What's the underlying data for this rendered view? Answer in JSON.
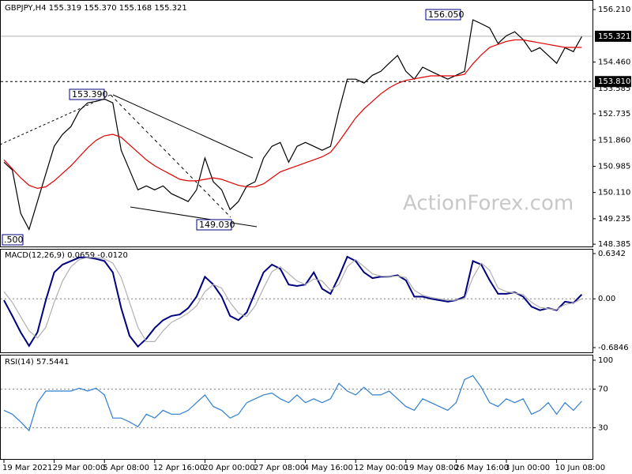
{
  "chart_data": [
    {
      "type": "line",
      "title": "GBPJPY,H4  155.319 155.370 155.168 155.321",
      "watermark": "ActionForex.com",
      "annotations": [
        "153.390",
        "156.050",
        "149.030",
        ".500"
      ],
      "ylim": [
        148.31,
        156.53
      ],
      "yticks": [
        {
          "value": 156.21,
          "label": "156.210"
        },
        {
          "value": 154.46,
          "label": "154.460"
        },
        153.585,
        152.735,
        {
          "value": 151.86,
          "label": "151.860"
        },
        150.985,
        {
          "value": 150.11,
          "label": "150.110"
        },
        149.235,
        148.385
      ],
      "hlines": [
        {
          "value": 155.321,
          "style": "solid"
        },
        {
          "value": 153.81,
          "label": "153.810",
          "style": "dotted"
        }
      ],
      "grid": false,
      "series": [
        {
          "color": "#000000",
          "values": [
            151.12,
            150.86,
            149.41,
            148.88,
            149.81,
            150.73,
            151.65,
            152.05,
            152.31,
            152.84,
            153.1,
            153.15,
            153.23,
            153.1,
            151.52,
            150.86,
            150.2,
            150.33,
            150.2,
            150.33,
            150.07,
            149.94,
            149.81,
            150.2,
            151.26,
            150.47,
            150.2,
            149.54,
            149.81,
            150.33,
            150.47,
            151.26,
            151.65,
            151.78,
            151.12,
            151.65,
            151.78,
            151.65,
            151.52,
            151.65,
            152.84,
            153.89,
            153.89,
            153.76,
            154.02,
            154.15,
            154.42,
            154.68,
            154.15,
            153.89,
            154.29,
            154.15,
            154.02,
            153.89,
            154.02,
            154.15,
            155.87,
            155.74,
            155.6,
            155.08,
            155.34,
            155.47,
            155.21,
            154.81,
            154.94,
            154.68,
            154.42,
            154.94,
            154.81,
            155.31
          ]
        },
        {
          "color": "#e00000",
          "values": [
            151.2,
            150.9,
            150.6,
            150.35,
            150.25,
            150.3,
            150.5,
            150.75,
            151.0,
            151.3,
            151.6,
            151.85,
            152.0,
            152.05,
            151.95,
            151.7,
            151.45,
            151.2,
            151.0,
            150.85,
            150.7,
            150.55,
            150.5,
            150.5,
            150.55,
            150.6,
            150.55,
            150.45,
            150.35,
            150.3,
            150.3,
            150.4,
            150.6,
            150.8,
            150.9,
            151.0,
            151.1,
            151.2,
            151.3,
            151.45,
            151.8,
            152.2,
            152.6,
            152.9,
            153.15,
            153.4,
            153.6,
            153.75,
            153.85,
            153.9,
            153.95,
            154.0,
            154.0,
            154.0,
            154.0,
            154.05,
            154.4,
            154.7,
            154.95,
            155.05,
            155.15,
            155.2,
            155.2,
            155.15,
            155.1,
            155.05,
            155.0,
            154.95,
            154.95,
            154.95
          ]
        }
      ]
    },
    {
      "type": "line",
      "title": "MACD(12,26,9) 0.0659 -0.0120",
      "ylim": [
        -0.6846,
        0.6342
      ],
      "yticks": [
        0.6342,
        {
          "value": 0,
          "label": "0.00"
        },
        -0.6846
      ],
      "grid": true,
      "series": [
        {
          "color": "#000080",
          "values": [
            -0.02,
            -0.24,
            -0.47,
            -0.66,
            -0.47,
            -0.02,
            0.37,
            0.48,
            0.53,
            0.58,
            0.58,
            0.56,
            0.53,
            0.37,
            -0.13,
            -0.52,
            -0.67,
            -0.56,
            -0.41,
            -0.3,
            -0.24,
            -0.22,
            -0.13,
            0.03,
            0.31,
            0.2,
            0.03,
            -0.24,
            -0.3,
            -0.19,
            0.09,
            0.37,
            0.48,
            0.42,
            0.2,
            0.18,
            0.2,
            0.37,
            0.14,
            0.07,
            0.31,
            0.59,
            0.53,
            0.37,
            0.29,
            0.31,
            0.31,
            0.33,
            0.26,
            0.03,
            0.03,
            0,
            -0.02,
            -0.04,
            -0.02,
            0.03,
            0.53,
            0.48,
            0.26,
            0.07,
            0.07,
            0.09,
            0.03,
            -0.11,
            -0.16,
            -0.13,
            -0.16,
            -0.04,
            -0.06,
            0.06
          ]
        },
        {
          "color": "#b0b0b0",
          "values": [
            0.1,
            -0.05,
            -0.25,
            -0.45,
            -0.55,
            -0.4,
            -0.05,
            0.25,
            0.45,
            0.55,
            0.58,
            0.58,
            0.56,
            0.5,
            0.3,
            -0.05,
            -0.4,
            -0.6,
            -0.6,
            -0.45,
            -0.33,
            -0.27,
            -0.2,
            -0.1,
            0.1,
            0.2,
            0.15,
            -0.05,
            -0.2,
            -0.25,
            -0.1,
            0.15,
            0.38,
            0.45,
            0.35,
            0.25,
            0.2,
            0.28,
            0.25,
            0.12,
            0.2,
            0.45,
            0.55,
            0.45,
            0.35,
            0.32,
            0.31,
            0.32,
            0.3,
            0.12,
            0.05,
            0.02,
            0,
            -0.02,
            -0.02,
            0,
            0.3,
            0.5,
            0.4,
            0.15,
            0.1,
            0.08,
            0.06,
            -0.05,
            -0.12,
            -0.14,
            -0.15,
            -0.08,
            -0.06,
            0
          ]
        }
      ]
    },
    {
      "type": "line",
      "title": "RSI(14) 57.5441",
      "ylim": [
        0,
        100
      ],
      "yticks": [
        100,
        70,
        30
      ],
      "grid": true,
      "categories": [
        "19 Mar 2021",
        null,
        null,
        null,
        null,
        null,
        "29 Mar 00:00",
        null,
        null,
        null,
        null,
        null,
        "5 Apr 08:00",
        null,
        null,
        null,
        null,
        null,
        "12 Apr 16:00",
        null,
        null,
        null,
        null,
        null,
        "20 Apr 00:00",
        null,
        null,
        null,
        null,
        null,
        "27 Apr 08:00",
        null,
        null,
        null,
        null,
        null,
        "4 May 16:00",
        null,
        null,
        null,
        null,
        null,
        "12 May 00:00",
        null,
        null,
        null,
        null,
        null,
        "19 May 08:00",
        null,
        null,
        null,
        null,
        null,
        "26 May 16:00",
        null,
        null,
        null,
        null,
        null,
        "3 Jun 00:00",
        null,
        null,
        null,
        null,
        null,
        "10 Jun 08:00",
        null,
        null,
        null
      ],
      "series": [
        {
          "color": "#2f7fd0",
          "values": [
            48,
            44,
            36,
            27,
            56,
            68,
            68,
            68,
            68,
            71,
            68,
            71,
            64,
            40,
            40,
            36,
            31,
            44,
            40,
            48,
            44,
            44,
            48,
            56,
            64,
            52,
            48,
            40,
            44,
            56,
            60,
            64,
            66,
            60,
            56,
            64,
            56,
            60,
            56,
            60,
            76,
            68,
            64,
            72,
            64,
            64,
            68,
            60,
            52,
            48,
            60,
            56,
            52,
            48,
            56,
            80,
            84,
            72,
            56,
            52,
            60,
            56,
            60,
            44,
            48,
            56,
            44,
            56,
            48,
            57.5
          ]
        }
      ]
    }
  ]
}
